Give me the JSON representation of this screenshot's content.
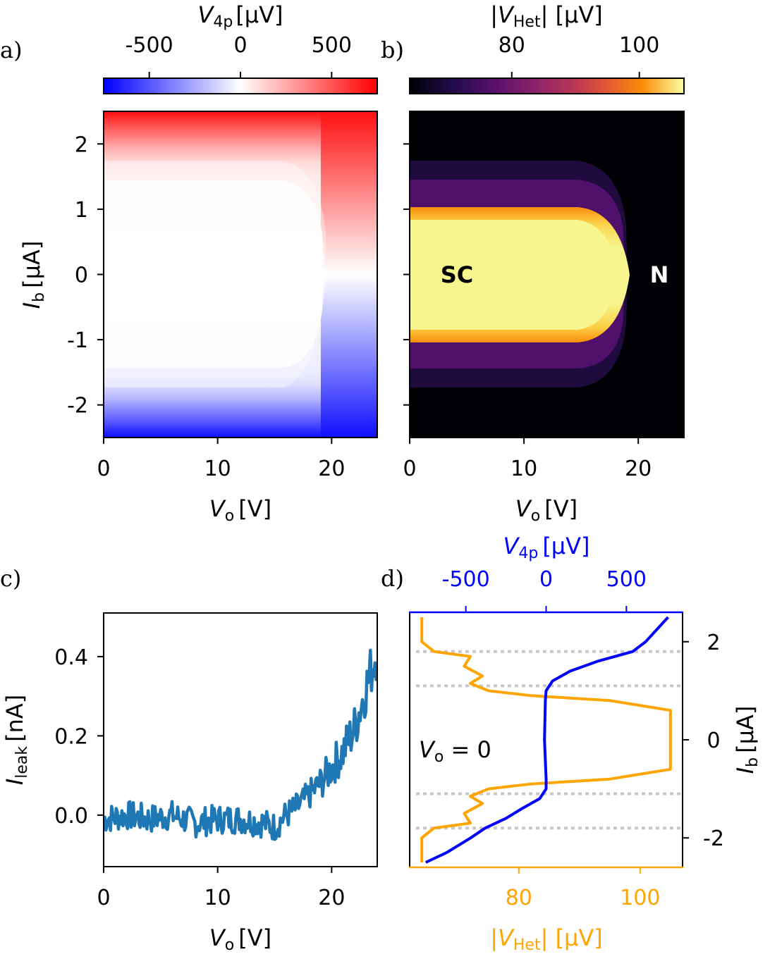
{
  "chart_data": [
    {
      "panel": "a)",
      "type": "heatmap",
      "colormap": "bwr",
      "x_label_main": "V",
      "x_label_sub": "o",
      "x_label_unit": "[V]",
      "y_label_main": "I",
      "y_label_sub": "b",
      "y_label_unit": "[μA]",
      "xlim": [
        0,
        24
      ],
      "ylim": [
        -2.5,
        2.5
      ],
      "x_ticks": [
        0,
        10,
        20
      ],
      "y_ticks": [
        2,
        1,
        0,
        -1,
        -2
      ],
      "colorbar": {
        "label_main": "V",
        "label_sub": "4p",
        "label_unit": "[μV]",
        "range": [
          -750,
          750
        ],
        "ticks": [
          -500,
          0,
          500
        ]
      },
      "features": {
        "supercurrent_Ib": 1.45,
        "second_step_Ib": 1.75,
        "suppression_Vo": 20
      }
    },
    {
      "panel": "b)",
      "type": "heatmap",
      "colormap": "inferno",
      "x_label_main": "V",
      "x_label_sub": "o",
      "x_label_unit": "[V]",
      "xlim": [
        0,
        24
      ],
      "ylim": [
        -2.5,
        2.5
      ],
      "x_ticks": [
        0,
        10,
        20
      ],
      "colorbar": {
        "label_main": "|V",
        "label_sub": "Het",
        "label_unit": "| [μV]",
        "range": [
          64,
          107
        ],
        "ticks": [
          80,
          100
        ]
      },
      "annotations": [
        "SC",
        "N"
      ]
    },
    {
      "panel": "c)",
      "type": "line",
      "color": "#1f77b4",
      "x_label_main": "V",
      "x_label_sub": "o",
      "x_label_unit": "[V]",
      "y_label_main": "I",
      "y_label_sub": "leak",
      "y_label_unit": "[nA]",
      "xlim": [
        0,
        24
      ],
      "ylim": [
        -0.13,
        0.51
      ],
      "x_ticks": [
        0,
        10,
        20
      ],
      "y_ticks": [
        0.4,
        0.2,
        0.0
      ],
      "x": [
        0,
        2,
        4,
        6,
        8,
        10,
        12,
        14,
        15,
        16,
        17,
        18,
        19,
        20,
        21,
        22,
        23,
        24
      ],
      "y": [
        -0.01,
        0.0,
        -0.01,
        0.0,
        -0.02,
        -0.01,
        -0.01,
        -0.02,
        -0.03,
        0.0,
        0.02,
        0.05,
        0.08,
        0.12,
        0.16,
        0.22,
        0.32,
        0.42
      ]
    },
    {
      "panel": "d)",
      "type": "line",
      "annotation": {
        "main": "V",
        "sub": "o",
        "rest": " = 0"
      },
      "y_label_main": "I",
      "y_label_sub": "b",
      "y_label_unit": "[μA]",
      "ylim": [
        -2.6,
        2.6
      ],
      "y_ticks": [
        2,
        0,
        -2
      ],
      "dotted_lines_Ib": [
        1.8,
        1.1,
        -1.1,
        -1.8
      ],
      "series": [
        {
          "name": "V4p",
          "color": "#0000ff",
          "axis_label_main": "V",
          "axis_label_sub": "4p",
          "axis_label_unit": "[μV]",
          "xlim": [
            -850,
            850
          ],
          "x_ticks": [
            -500,
            0,
            500
          ],
          "Ib": [
            -2.5,
            -2.3,
            -2.0,
            -1.8,
            -1.6,
            -1.4,
            -1.2,
            -1.0,
            -0.8,
            0.0,
            0.8,
            1.0,
            1.2,
            1.4,
            1.6,
            1.8,
            2.0,
            2.5
          ],
          "V": [
            -750,
            -620,
            -470,
            -380,
            -250,
            -150,
            -40,
            0,
            0,
            -10,
            -5,
            0,
            40,
            150,
            320,
            540,
            620,
            760
          ]
        },
        {
          "name": "|V_Het|",
          "color": "#ffa500",
          "axis_label_main": "|V",
          "axis_label_sub": "Het",
          "axis_label_unit": "| [μV]",
          "xlim": [
            62,
            107
          ],
          "x_ticks": [
            80,
            100
          ],
          "Ib": [
            -2.5,
            -2.0,
            -1.8,
            -1.7,
            -1.5,
            -1.3,
            -1.15,
            -1.0,
            -0.9,
            -0.8,
            -0.6,
            0.0,
            0.6,
            0.8,
            0.9,
            1.0,
            1.15,
            1.3,
            1.5,
            1.7,
            1.8,
            2.0,
            2.5
          ],
          "V": [
            64,
            64,
            66,
            72,
            71,
            74,
            72,
            75,
            82,
            95,
            105,
            105,
            105,
            95,
            82,
            75,
            72,
            74,
            71,
            72,
            66,
            64,
            64
          ]
        }
      ]
    }
  ]
}
